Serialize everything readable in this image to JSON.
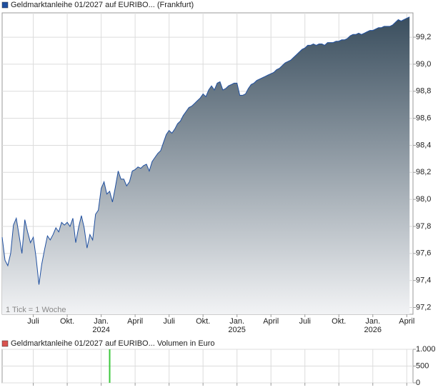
{
  "chart_data": [
    {
      "type": "area",
      "annotation": "1 Tick = 1 Woche",
      "x": [
        -2.75,
        -2.5,
        -2.25,
        -2,
        -1.75,
        -1.5,
        -1.25,
        -1,
        -0.75,
        -0.5,
        -0.25,
        0,
        0.25,
        0.5,
        0.75,
        1,
        1.25,
        1.5,
        1.75,
        2,
        2.25,
        2.5,
        2.75,
        3,
        3.25,
        3.5,
        3.75,
        4,
        4.25,
        4.5,
        4.75,
        5,
        5.25,
        5.5,
        5.75,
        6,
        6.25,
        6.5,
        6.75,
        7,
        7.25,
        7.5,
        7.75,
        8,
        8.25,
        8.5,
        8.75,
        9,
        9.25,
        9.5,
        9.75,
        10,
        10.25,
        10.5,
        10.75,
        11,
        11.25,
        11.5,
        11.75,
        12,
        12.25,
        12.5,
        12.75,
        13,
        13.25,
        13.5,
        13.75,
        14,
        14.25,
        14.5,
        14.75,
        15,
        15.25,
        15.5,
        15.75,
        16,
        16.25,
        16.5,
        16.75,
        17,
        17.25,
        17.5,
        17.75,
        18,
        18.25,
        18.5,
        18.75,
        19,
        19.25,
        19.5,
        19.75,
        20,
        20.25,
        20.5,
        20.75,
        21,
        21.25,
        21.5,
        21.75,
        22,
        22.25,
        22.5,
        22.75,
        23,
        23.25,
        23.5,
        23.75,
        24,
        24.25,
        24.5,
        24.75,
        25,
        25.25,
        25.5,
        25.75,
        26,
        26.25,
        26.5,
        26.75,
        27,
        27.25,
        27.5,
        27.75,
        28,
        28.25,
        28.5,
        28.75,
        29,
        29.25,
        29.5,
        29.75,
        30,
        30.25,
        30.5,
        30.75,
        31,
        31.25,
        31.5,
        31.75,
        32,
        32.25,
        32.5,
        32.75,
        33,
        33.25
      ],
      "series": [
        {
          "name": "Geldmarktanleihe 01/2027 auf EURIBO... (Frankfurt)",
          "color": "#1f4f9f",
          "values": [
            97.72,
            97.55,
            97.51,
            97.6,
            97.81,
            97.86,
            97.73,
            97.6,
            97.85,
            97.76,
            97.68,
            97.72,
            97.57,
            97.37,
            97.52,
            97.63,
            97.73,
            97.7,
            97.74,
            97.79,
            97.76,
            97.83,
            97.81,
            97.83,
            97.8,
            97.86,
            97.68,
            97.79,
            97.88,
            97.79,
            97.64,
            97.74,
            97.7,
            97.89,
            97.92,
            98.08,
            98.13,
            98.04,
            98.06,
            97.98,
            98.09,
            98.21,
            98.15,
            98.15,
            98.1,
            98.13,
            98.21,
            98.22,
            98.24,
            98.23,
            98.25,
            98.26,
            98.21,
            98.28,
            98.31,
            98.34,
            98.36,
            98.42,
            98.48,
            98.51,
            98.49,
            98.52,
            98.56,
            98.58,
            98.62,
            98.65,
            98.68,
            98.69,
            98.71,
            98.73,
            98.75,
            98.78,
            98.76,
            98.81,
            98.84,
            98.81,
            98.86,
            98.87,
            98.81,
            98.82,
            98.84,
            98.85,
            98.86,
            98.86,
            98.77,
            98.77,
            98.78,
            98.82,
            98.85,
            98.86,
            98.88,
            98.89,
            98.9,
            98.91,
            98.92,
            98.93,
            98.94,
            98.96,
            98.97,
            98.99,
            99.01,
            99.02,
            99.03,
            99.05,
            99.07,
            99.09,
            99.11,
            99.12,
            99.14,
            99.14,
            99.15,
            99.14,
            99.15,
            99.15,
            99.14,
            99.16,
            99.16,
            99.16,
            99.17,
            99.17,
            99.18,
            99.18,
            99.19,
            99.21,
            99.22,
            99.22,
            99.23,
            99.22,
            99.23,
            99.24,
            99.25,
            99.25,
            99.26,
            99.27,
            99.27,
            99.28,
            99.28,
            99.28,
            99.29,
            99.31,
            99.33,
            99.32,
            99.33,
            99.34,
            99.35
          ]
        }
      ],
      "area_gradient": [
        "#3a4e5e",
        "#f2f3f5"
      ],
      "xlim": [
        -2.75,
        33.55
      ],
      "xticks": [
        {
          "value": 0,
          "label": "Juli"
        },
        {
          "value": 3,
          "label": "Okt."
        },
        {
          "value": 6,
          "label": "Jan.\n2024"
        },
        {
          "value": 9,
          "label": "April"
        },
        {
          "value": 12,
          "label": "Juli"
        },
        {
          "value": 15,
          "label": "Okt."
        },
        {
          "value": 18,
          "label": "Jan.\n2025"
        },
        {
          "value": 21,
          "label": "April"
        },
        {
          "value": 24,
          "label": "Juli"
        },
        {
          "value": 27,
          "label": "Okt."
        },
        {
          "value": 30,
          "label": "Jan.\n2026"
        },
        {
          "value": 33,
          "label": "April"
        }
      ],
      "ylim": [
        97.15,
        99.38
      ],
      "yticks": [
        {
          "value": 97.2,
          "label": "97,2"
        },
        {
          "value": 97.4,
          "label": "97,4"
        },
        {
          "value": 97.6,
          "label": "97,6"
        },
        {
          "value": 97.8,
          "label": "97,8"
        },
        {
          "value": 98.0,
          "label": "98,0"
        },
        {
          "value": 98.2,
          "label": "98,2"
        },
        {
          "value": 98.4,
          "label": "98,4"
        },
        {
          "value": 98.6,
          "label": "98,6"
        },
        {
          "value": 98.8,
          "label": "98,8"
        },
        {
          "value": 99.0,
          "label": "99,0"
        },
        {
          "value": 99.2,
          "label": "99,2"
        }
      ],
      "grid": true
    },
    {
      "type": "bar",
      "x": [
        6.75
      ],
      "series": [
        {
          "name": "Geldmarktanleihe 01/2027 auf EURIBO... Volumen in Euro",
          "color": "#3cc83c",
          "values": [
            1000
          ]
        }
      ],
      "legend_color": "#d9534f",
      "xlim": [
        -2.75,
        33.55
      ],
      "xticks": [
        0,
        3,
        6,
        9,
        12,
        15,
        18,
        21,
        24,
        27,
        30,
        33
      ],
      "ylim": [
        0,
        1000
      ],
      "yticks": [
        {
          "value": 0,
          "label": "0"
        },
        {
          "value": 500,
          "label": "500"
        },
        {
          "value": 1000,
          "label": "1.000"
        }
      ],
      "grid": true
    }
  ]
}
